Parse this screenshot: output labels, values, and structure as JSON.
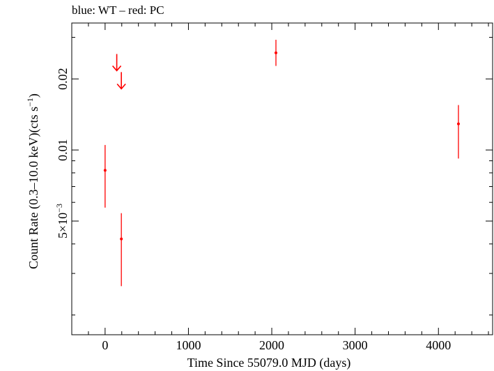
{
  "chart_data": {
    "type": "scatter",
    "title": "blue: WT – red: PC",
    "xlabel": "Time Since 55079.0 MJD (days)",
    "ylabel": "Count Rate (0.3–10.0 keV)(cts s",
    "ylabel_sup": "−1",
    "ylabel_close": ")",
    "xlim": [
      -400,
      4650
    ],
    "ylim": [
      0.00165,
      0.0345
    ],
    "yscale": "log",
    "x_ticks": [
      0,
      1000,
      2000,
      3000,
      4000
    ],
    "x_tick_labels": [
      "0",
      "1000",
      "2000",
      "3000",
      "4000"
    ],
    "y_major_ticks": [
      0.005,
      0.01,
      0.02
    ],
    "y_tick_labels": [
      {
        "value": 0.02,
        "text": "0.02"
      },
      {
        "value": 0.01,
        "text": "0.01"
      },
      {
        "value": 0.005,
        "text": "5×10",
        "sup": "−3"
      }
    ],
    "y_minor_ticks": [
      0.002,
      0.003,
      0.004,
      0.006,
      0.007,
      0.008,
      0.009,
      0.03
    ],
    "grid": false,
    "series": [
      {
        "color": "#ff0000",
        "points": [
          {
            "x": 0,
            "y": 0.0082,
            "ylo": 0.0057,
            "yhi": 0.0105
          },
          {
            "x": 195,
            "y": 0.0042,
            "ylo": 0.00265,
            "yhi": 0.0054
          },
          {
            "x": 2050,
            "y": 0.0258,
            "ylo": 0.0227,
            "yhi": 0.0293
          },
          {
            "x": 4240,
            "y": 0.0129,
            "ylo": 0.0092,
            "yhi": 0.0155
          }
        ],
        "upper_limits": [
          {
            "x": 140,
            "y": 0.0235
          },
          {
            "x": 195,
            "y": 0.0197
          }
        ]
      }
    ]
  }
}
